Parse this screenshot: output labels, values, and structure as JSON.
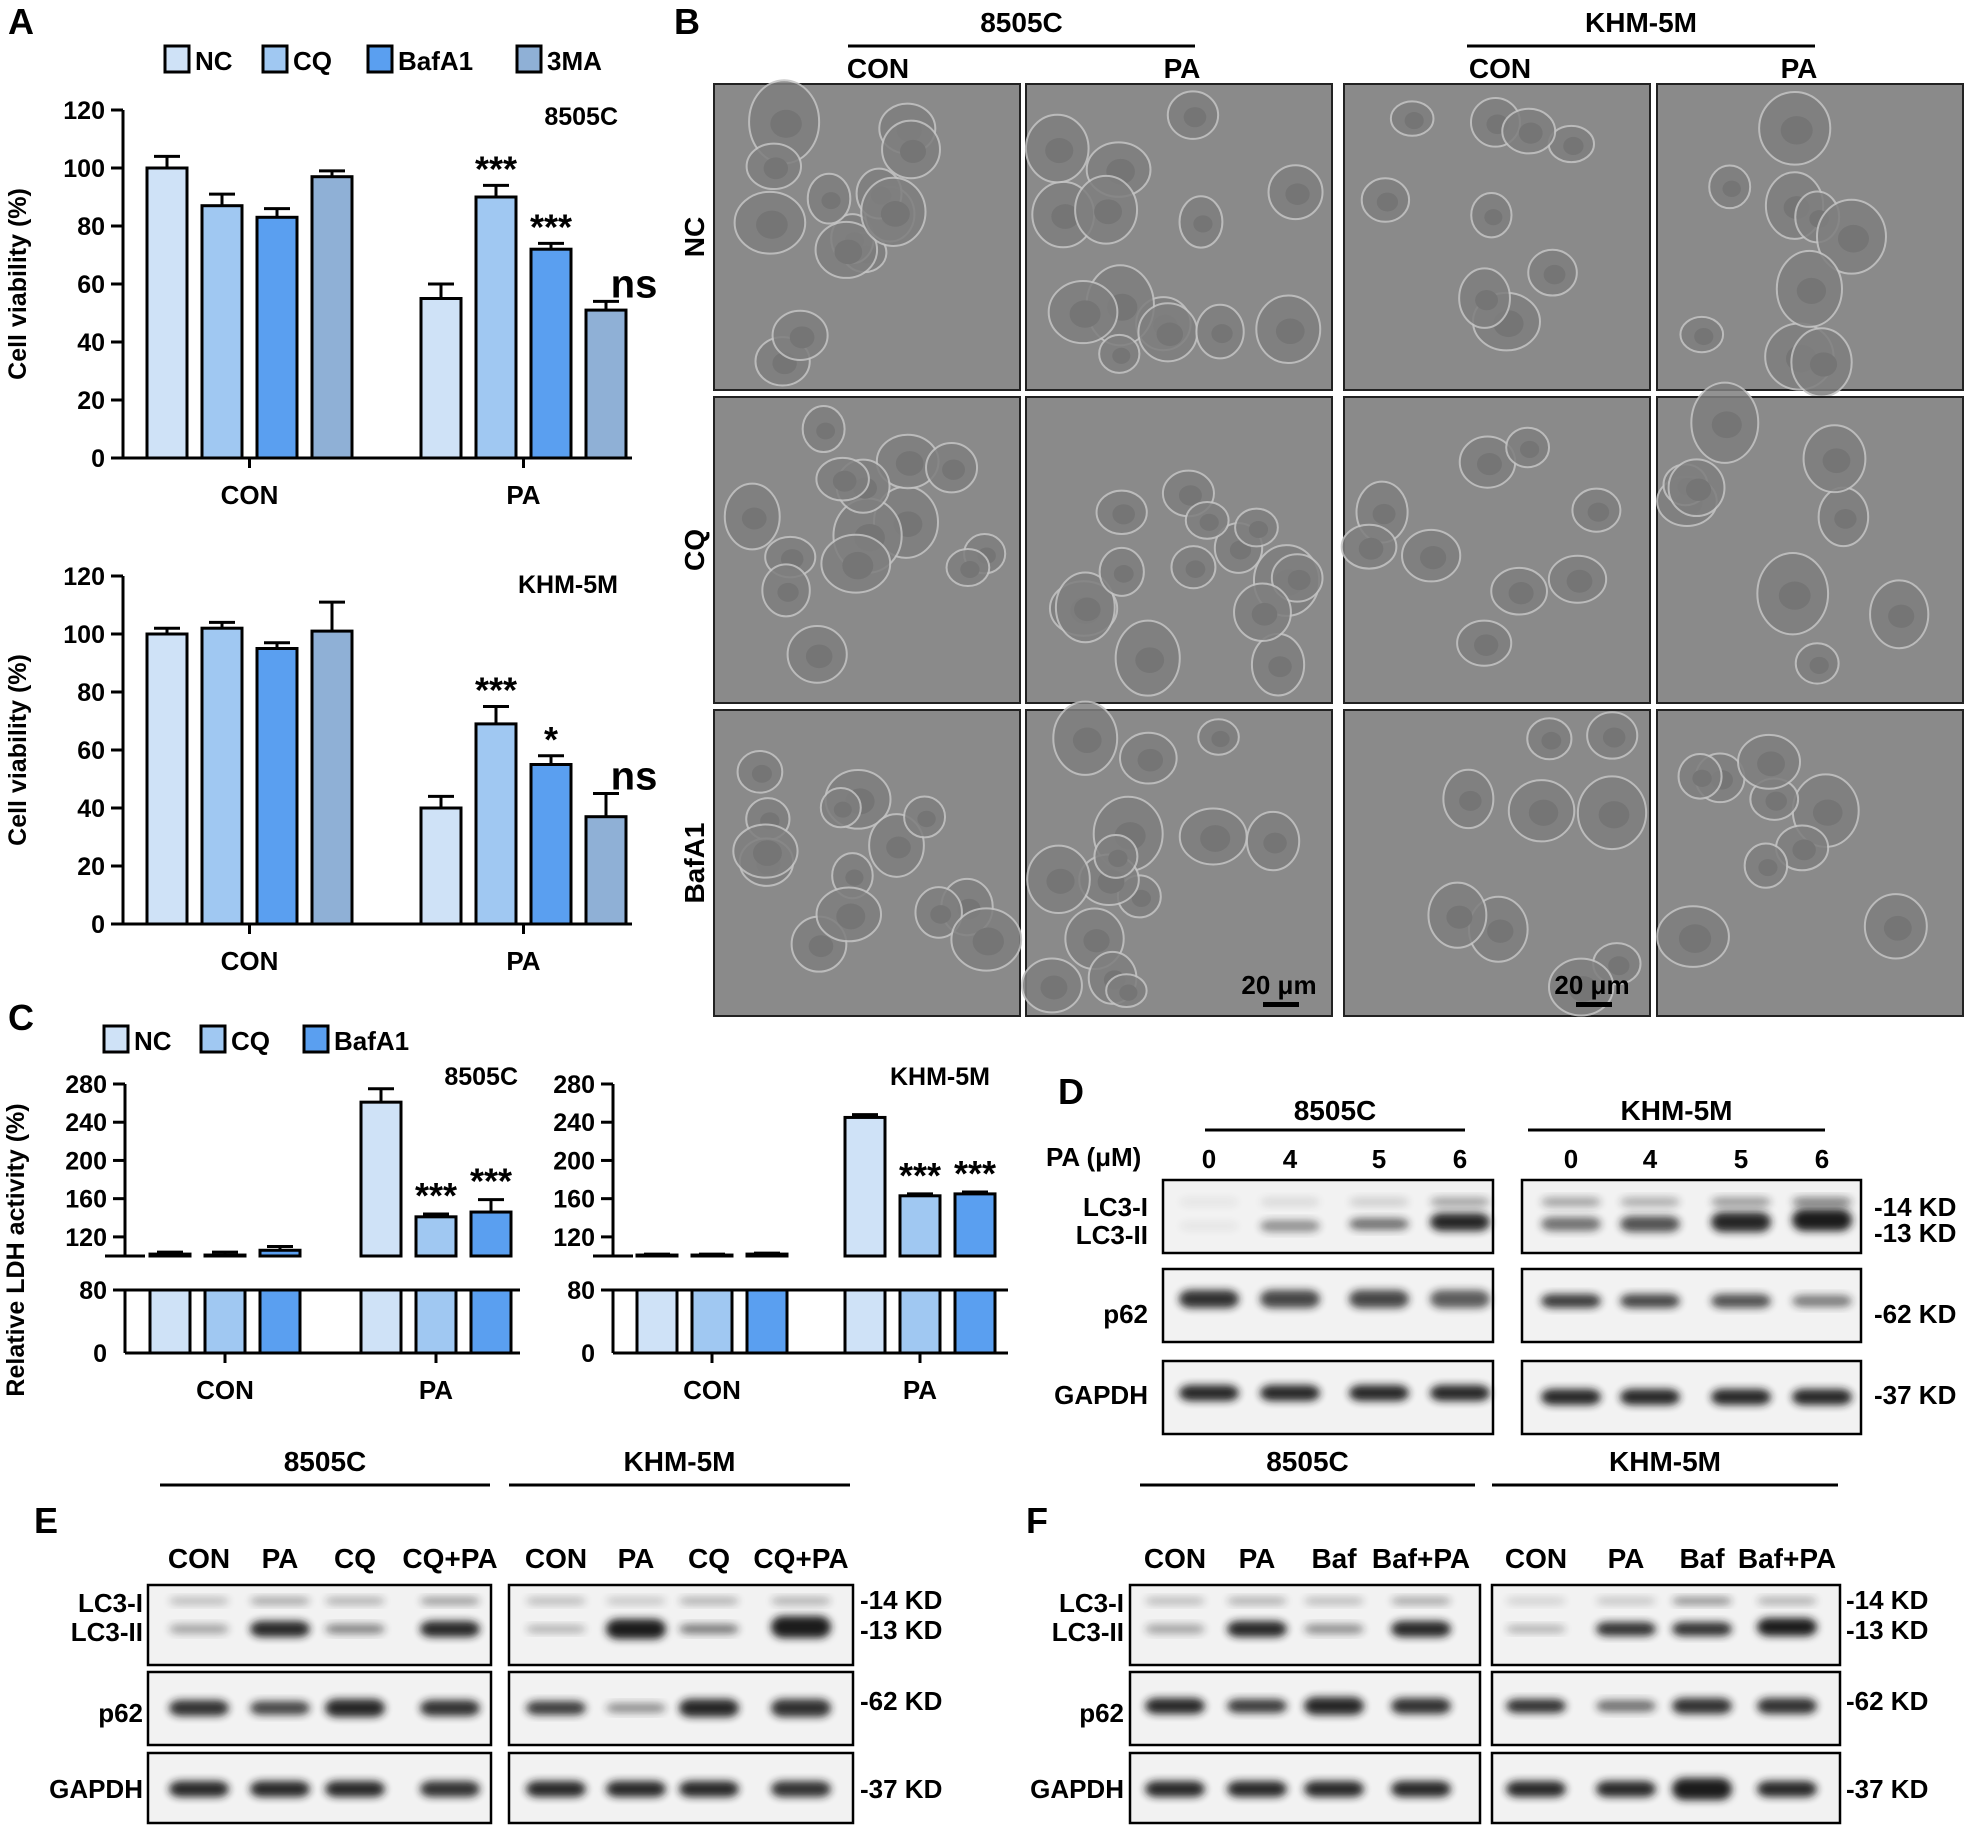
{
  "panels": {
    "A": {
      "letter": "A",
      "legend": [
        "NC",
        "CQ",
        "BafA1",
        "3MA"
      ],
      "charts": [
        {
          "type": "bar",
          "cell_line": "8505C",
          "ylabel": "Cell viability (%)",
          "categories": [
            "CON",
            "PA"
          ],
          "ylim": [
            0,
            120
          ],
          "yticks": [
            "0",
            "20",
            "40",
            "60",
            "80",
            "100",
            "120"
          ],
          "series": [
            {
              "name": "NC",
              "values": [
                100,
                55
              ],
              "errors": [
                4,
                5
              ]
            },
            {
              "name": "CQ",
              "values": [
                87,
                90
              ],
              "errors": [
                4,
                4
              ]
            },
            {
              "name": "BafA1",
              "values": [
                83,
                72
              ],
              "errors": [
                3,
                2
              ]
            },
            {
              "name": "3MA",
              "values": [
                97,
                51
              ],
              "errors": [
                2,
                3
              ]
            }
          ],
          "annotations": [
            "",
            "",
            "",
            "",
            "",
            "***",
            "***",
            "ns"
          ]
        },
        {
          "type": "bar",
          "cell_line": "KHM-5M",
          "ylabel": "Cell viability (%)",
          "categories": [
            "CON",
            "PA"
          ],
          "ylim": [
            0,
            120
          ],
          "yticks": [
            "0",
            "20",
            "40",
            "60",
            "80",
            "100",
            "120"
          ],
          "series": [
            {
              "name": "NC",
              "values": [
                100,
                40
              ],
              "errors": [
                2,
                4
              ]
            },
            {
              "name": "CQ",
              "values": [
                102,
                69
              ],
              "errors": [
                2,
                6
              ]
            },
            {
              "name": "BafA1",
              "values": [
                95,
                55
              ],
              "errors": [
                2,
                3
              ]
            },
            {
              "name": "3MA",
              "values": [
                101,
                37
              ],
              "errors": [
                10,
                8
              ]
            }
          ],
          "annotations": [
            "",
            "",
            "",
            "",
            "",
            "***",
            "*",
            "ns"
          ]
        }
      ]
    },
    "B": {
      "letter": "B",
      "groups": [
        "8505C",
        "KHM-5M"
      ],
      "columns": [
        "CON",
        "PA",
        "CON",
        "PA"
      ],
      "rows": [
        "NC",
        "CQ",
        "BafA1"
      ],
      "scale_bar": "20 μm"
    },
    "C": {
      "letter": "C",
      "legend": [
        "NC",
        "CQ",
        "BafA1"
      ],
      "ylabel": "Relative LDH activity (%)",
      "charts": [
        {
          "type": "bar",
          "cell_line": "8505C",
          "categories": [
            "CON",
            "PA"
          ],
          "axis_break": true,
          "ylim_lower": [
            0,
            80
          ],
          "ylim_upper": [
            100,
            280
          ],
          "yticks_lower": [
            "0",
            "80"
          ],
          "yticks_upper": [
            "120",
            "160",
            "200",
            "240",
            "280"
          ],
          "series": [
            {
              "name": "NC",
              "values": [
                102,
                261
              ],
              "errors": [
                2,
                14
              ]
            },
            {
              "name": "CQ",
              "values": [
                101,
                141
              ],
              "errors": [
                3,
                3
              ]
            },
            {
              "name": "BafA1",
              "values": [
                106,
                146
              ],
              "errors": [
                4,
                13
              ]
            }
          ],
          "annotations": [
            "",
            "",
            "",
            "",
            "***",
            "***"
          ]
        },
        {
          "type": "bar",
          "cell_line": "KHM-5M",
          "categories": [
            "CON",
            "PA"
          ],
          "axis_break": true,
          "ylim_lower": [
            0,
            80
          ],
          "ylim_upper": [
            100,
            280
          ],
          "yticks_lower": [
            "0",
            "80"
          ],
          "yticks_upper": [
            "120",
            "160",
            "200",
            "240",
            "280"
          ],
          "series": [
            {
              "name": "NC",
              "values": [
                101,
                245
              ],
              "errors": [
                1,
                3
              ]
            },
            {
              "name": "CQ",
              "values": [
                101,
                163
              ],
              "errors": [
                1,
                2
              ]
            },
            {
              "name": "BafA1",
              "values": [
                102,
                165
              ],
              "errors": [
                1,
                2
              ]
            }
          ],
          "annotations": [
            "",
            "",
            "",
            "",
            "***",
            "***"
          ]
        }
      ]
    },
    "D": {
      "letter": "D",
      "groups": [
        "8505C",
        "KHM-5M"
      ],
      "condition_label": "PA (μM)",
      "lanes": [
        "0",
        "4",
        "5",
        "6",
        "0",
        "4",
        "5",
        "6"
      ],
      "bands": [
        "LC3-I",
        "LC3-II",
        "p62",
        "GAPDH"
      ],
      "markers": [
        "-14 KD",
        "-13 KD",
        "-62 KD",
        "-37 KD"
      ]
    },
    "E": {
      "letter": "E",
      "groups": [
        "8505C",
        "KHM-5M"
      ],
      "lanes": [
        "CON",
        "PA",
        "CQ",
        "CQ+PA",
        "CON",
        "PA",
        "CQ",
        "CQ+PA"
      ],
      "bands": [
        "LC3-I",
        "LC3-II",
        "p62",
        "GAPDH"
      ],
      "markers": [
        "-14 KD",
        "-13 KD",
        "-62 KD",
        "-37 KD"
      ]
    },
    "F": {
      "letter": "F",
      "groups": [
        "8505C",
        "KHM-5M"
      ],
      "lanes": [
        "CON",
        "PA",
        "Baf",
        "Baf+PA",
        "CON",
        "PA",
        "Baf",
        "Baf+PA"
      ],
      "bands": [
        "LC3-I",
        "LC3-II",
        "p62",
        "GAPDH"
      ],
      "markers": [
        "-14 KD",
        "-13 KD",
        "-62 KD",
        "-37 KD"
      ]
    }
  },
  "colors": {
    "NC": "#cfe2f7",
    "CQ": "#a0c8f2",
    "BafA1": "#5a9ff0",
    "3MA": "#8fb0d6",
    "micrograph": "#8a8a8a",
    "blot_bg": "#f2f2f2",
    "band": "#1a1a1a"
  },
  "chart_data": [
    {
      "type": "bar",
      "title": "",
      "panel": "A-8505C",
      "categories": [
        "CON",
        "PA"
      ],
      "ylabel": "Cell viability (%)",
      "ylim": [
        0,
        120
      ],
      "series": [
        {
          "name": "NC",
          "values": [
            100,
            55
          ]
        },
        {
          "name": "CQ",
          "values": [
            87,
            90
          ]
        },
        {
          "name": "BafA1",
          "values": [
            83,
            72
          ]
        },
        {
          "name": "3MA",
          "values": [
            97,
            51
          ]
        }
      ]
    },
    {
      "type": "bar",
      "title": "",
      "panel": "A-KHM-5M",
      "categories": [
        "CON",
        "PA"
      ],
      "ylabel": "Cell viability (%)",
      "ylim": [
        0,
        120
      ],
      "series": [
        {
          "name": "NC",
          "values": [
            100,
            40
          ]
        },
        {
          "name": "CQ",
          "values": [
            102,
            69
          ]
        },
        {
          "name": "BafA1",
          "values": [
            95,
            55
          ]
        },
        {
          "name": "3MA",
          "values": [
            101,
            37
          ]
        }
      ]
    },
    {
      "type": "bar",
      "title": "",
      "panel": "C-8505C",
      "categories": [
        "CON",
        "PA"
      ],
      "ylabel": "Relative LDH activity (%)",
      "ylim": [
        0,
        280
      ],
      "series": [
        {
          "name": "NC",
          "values": [
            102,
            261
          ]
        },
        {
          "name": "CQ",
          "values": [
            101,
            141
          ]
        },
        {
          "name": "BafA1",
          "values": [
            106,
            146
          ]
        }
      ]
    },
    {
      "type": "bar",
      "title": "",
      "panel": "C-KHM-5M",
      "categories": [
        "CON",
        "PA"
      ],
      "ylabel": "Relative LDH activity (%)",
      "ylim": [
        0,
        280
      ],
      "series": [
        {
          "name": "NC",
          "values": [
            101,
            245
          ]
        },
        {
          "name": "CQ",
          "values": [
            101,
            163
          ]
        },
        {
          "name": "BafA1",
          "values": [
            102,
            165
          ]
        }
      ]
    }
  ]
}
